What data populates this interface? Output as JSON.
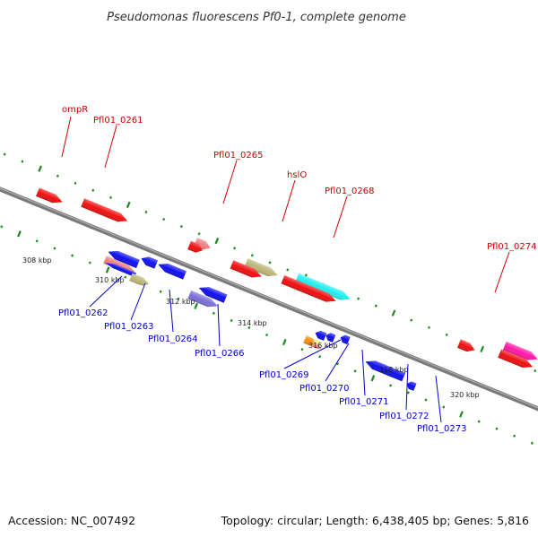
{
  "title": "Pseudomonas fluorescens Pf0-1, complete genome",
  "footer": {
    "accession": "Accession: NC_007492",
    "summary": "Topology: circular; Length: 6,438,405 bp; Genes: 5,816"
  },
  "colors": {
    "backbone": "#7a7a7a",
    "tick": "#1a8a1a",
    "forward_label": "#cc0000",
    "reverse_label": "#0000cc"
  },
  "scale_labels": [
    "308 kbp",
    "310 kbp",
    "312 kbp",
    "314 kbp",
    "316 kbp",
    "318 kbp",
    "320 kbp"
  ],
  "forward_labels": [
    "ompR",
    "Pfl01_0261",
    "Pfl01_0265",
    "hslO",
    "Pfl01_0268",
    "Pfl01_0274"
  ],
  "reverse_labels": [
    "Pfl01_0262",
    "Pfl01_0263",
    "Pfl01_0264",
    "Pfl01_0266",
    "Pfl01_0269",
    "Pfl01_0270",
    "Pfl01_0271",
    "Pfl01_0272",
    "Pfl01_0273"
  ]
}
